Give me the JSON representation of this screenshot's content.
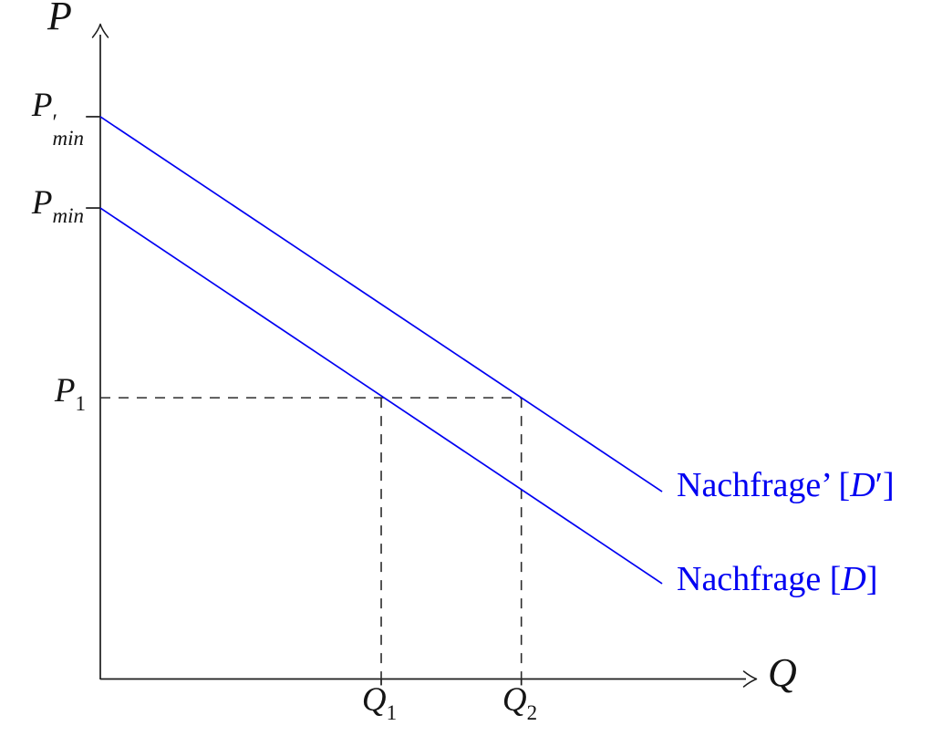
{
  "figure": {
    "background": "#ffffff",
    "axis_color": "#1c1c1c",
    "curve_color": "#0000f2",
    "dash_color": "#2b2b2b"
  },
  "labels": {
    "p_axis": "P",
    "q_axis": "Q",
    "p_prime_min": {
      "base": "P",
      "prime": "′",
      "sub": "min"
    },
    "p_min": {
      "base": "P",
      "sub": "min"
    },
    "p_1": {
      "base": "P",
      "sub": "1"
    },
    "q_1": {
      "base": "Q",
      "sub": "1"
    },
    "q_2": {
      "base": "Q",
      "sub": "2"
    },
    "demand_prime": {
      "prefix": "Nachfrage’ [",
      "variable": "D",
      "suffix": "′]"
    },
    "demand": {
      "prefix": "Nachfrage [",
      "variable": "D",
      "suffix": "]"
    }
  },
  "chart_data": {
    "type": "line",
    "xlabel": "Q",
    "ylabel": "P",
    "axes_numeric": false,
    "units": "normalized 0-100 of drawable axis length (axes carry no numeric ticks)",
    "legend_position": "right of curve ends, inline labels",
    "grid": false,
    "series": [
      {
        "name": "Nachfrage’ [D′]",
        "color": "#0000f2",
        "points": [
          {
            "x": 0,
            "y": 86.3
          },
          {
            "x": 85.8,
            "y": 28.8
          }
        ]
      },
      {
        "name": "Nachfrage [D]",
        "color": "#0000f2",
        "points": [
          {
            "x": 0,
            "y": 72.3
          },
          {
            "x": 85.8,
            "y": 14.7
          }
        ]
      }
    ],
    "key_values": {
      "P_prime_min": 86.3,
      "P_min": 72.3,
      "P_1": 43.2,
      "Q_1": 42.9,
      "Q_2": 64.3
    },
    "annotations": [
      "Demand line D intersects price P_1 at quantity Q_1",
      "Shifted demand line D' intersects price P_1 at quantity Q_2",
      "Both demand lines are parallel (slope ≈ -0.67 in normalized units)"
    ],
    "guides": [
      {
        "type": "horizontal-dashed",
        "from": [
          0,
          43.2
        ],
        "to": [
          64.3,
          43.2
        ]
      },
      {
        "type": "vertical-dashed",
        "from": [
          42.9,
          43.2
        ],
        "to": [
          42.9,
          0
        ]
      },
      {
        "type": "vertical-dashed",
        "from": [
          64.3,
          43.2
        ],
        "to": [
          64.3,
          0
        ]
      }
    ],
    "y_ticks": [
      {
        "from": [
          -2.2,
          86.3
        ],
        "to": [
          0,
          86.3
        ]
      },
      {
        "from": [
          -2.2,
          72.3
        ],
        "to": [
          0,
          72.3
        ]
      }
    ],
    "x_ticks": [
      {
        "from": [
          42.9,
          0
        ],
        "to": [
          42.9,
          -0.9
        ]
      },
      {
        "from": [
          64.3,
          0
        ],
        "to": [
          64.3,
          -0.9
        ]
      }
    ]
  }
}
